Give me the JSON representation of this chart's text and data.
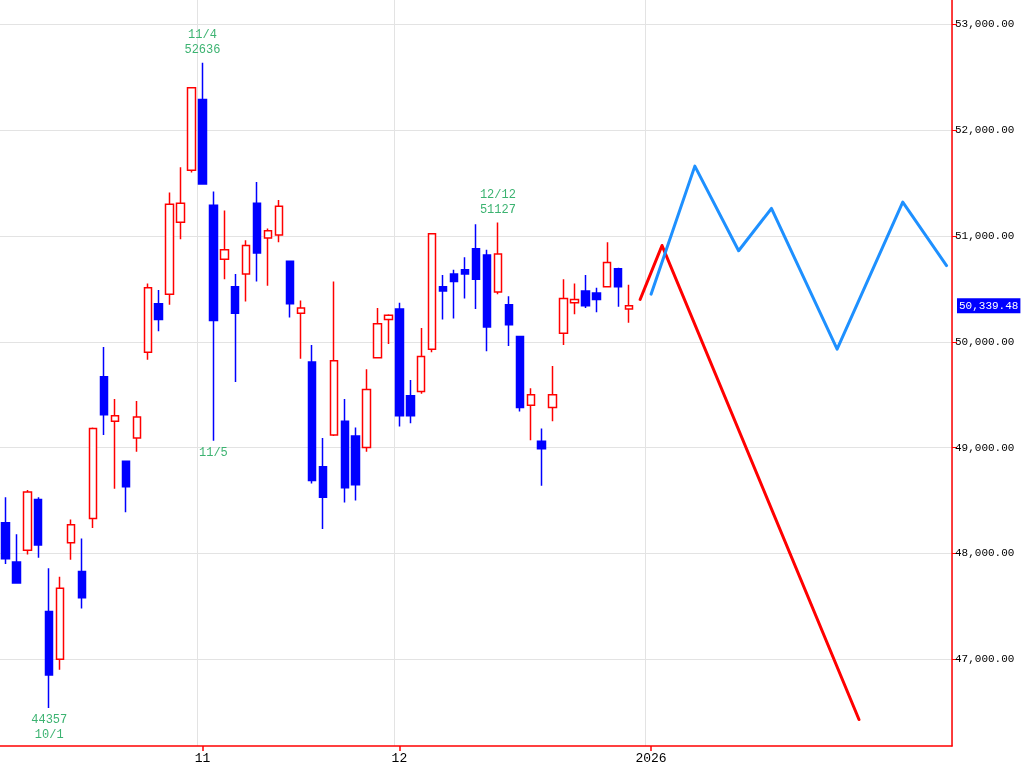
{
  "chart_data": {
    "type": "candlestick",
    "categories": [
      null,
      null,
      null,
      null,
      null,
      null,
      null,
      null,
      null,
      null,
      null,
      null,
      null,
      null,
      null,
      null,
      null,
      null,
      "11",
      null,
      null,
      null,
      null,
      null,
      null,
      null,
      null,
      null,
      null,
      null,
      null,
      null,
      null,
      null,
      null,
      null,
      "12",
      null,
      null,
      null,
      null,
      null,
      null,
      null,
      null,
      null,
      null,
      null,
      null,
      null,
      null,
      null,
      null,
      null,
      null,
      null,
      null,
      null,
      null,
      "2026",
      null,
      null,
      null,
      null,
      null,
      null,
      null,
      null,
      null,
      null,
      null,
      null,
      null,
      null,
      null,
      null,
      null,
      null,
      null,
      null,
      null,
      null,
      null,
      null,
      null,
      null,
      null
    ],
    "ohlc": [
      [
        48290,
        48530,
        47900,
        47950
      ],
      [
        47920,
        48180,
        47720,
        47720
      ],
      [
        48030,
        48600,
        47990,
        48580
      ],
      [
        48510,
        48530,
        47960,
        48080
      ],
      [
        47450,
        47860,
        46540,
        46850
      ],
      [
        47000,
        47780,
        46900,
        47670
      ],
      [
        48100,
        48320,
        47940,
        48270
      ],
      [
        47830,
        48140,
        47480,
        47580
      ],
      [
        48330,
        49190,
        48240,
        49180
      ],
      [
        49670,
        49950,
        49120,
        49310
      ],
      [
        49250,
        49460,
        48610,
        49300
      ],
      [
        48870,
        48870,
        48390,
        48630
      ],
      [
        49090,
        49440,
        48960,
        49290
      ],
      [
        49900,
        50550,
        49830,
        50510
      ],
      [
        50360,
        50490,
        50100,
        50210
      ],
      [
        50450,
        51410,
        50350,
        51300
      ],
      [
        51130,
        51650,
        50970,
        51310
      ],
      [
        51620,
        52400,
        51600,
        52400
      ],
      [
        52290,
        52636,
        51490,
        51490
      ],
      [
        51290,
        51420,
        49065,
        50200
      ],
      [
        50780,
        51240,
        50590,
        50870
      ],
      [
        50520,
        50640,
        49620,
        50270
      ],
      [
        50640,
        50960,
        50380,
        50910
      ],
      [
        51310,
        51510,
        50570,
        50840
      ],
      [
        50980,
        51070,
        50530,
        51050
      ],
      [
        51010,
        51340,
        50940,
        51280
      ],
      [
        50760,
        50760,
        50230,
        50360
      ],
      [
        50270,
        50390,
        49840,
        50320
      ],
      [
        49810,
        49970,
        48660,
        48690
      ],
      [
        48820,
        49090,
        48230,
        48530
      ],
      [
        49120,
        50570,
        49110,
        49820
      ],
      [
        49250,
        49460,
        48480,
        48620
      ],
      [
        49110,
        49190,
        48500,
        48650
      ],
      [
        49000,
        49740,
        48960,
        49550
      ],
      [
        49850,
        50320,
        49850,
        50170
      ],
      [
        50210,
        50260,
        49980,
        50250
      ],
      [
        50310,
        50370,
        49200,
        49300
      ],
      [
        49490,
        49640,
        49230,
        49300
      ],
      [
        49530,
        50130,
        49510,
        49860
      ],
      [
        49930,
        51020,
        49900,
        51020
      ],
      [
        50520,
        50630,
        50210,
        50480
      ],
      [
        50640,
        50680,
        50220,
        50570
      ],
      [
        50680,
        50800,
        50410,
        50640
      ],
      [
        50880,
        51110,
        50310,
        50590
      ],
      [
        50820,
        50870,
        49910,
        50140
      ],
      [
        50470,
        51127,
        50450,
        50830
      ],
      [
        50350,
        50430,
        49960,
        50160
      ],
      [
        50050,
        50050,
        49340,
        49380
      ],
      [
        49400,
        49560,
        49070,
        49500
      ],
      [
        49060,
        49180,
        48640,
        48990
      ],
      [
        49380,
        49770,
        49250,
        49500
      ],
      [
        50080,
        50590,
        49970,
        50410
      ],
      [
        50370,
        50550,
        50260,
        50400
      ],
      [
        50480,
        50630,
        50320,
        50340
      ],
      [
        50460,
        50510,
        50280,
        50400
      ],
      [
        50520,
        50940,
        50520,
        50750
      ],
      [
        50690,
        50700,
        50330,
        50520
      ],
      [
        50310,
        50540,
        50180,
        50339.48
      ],
      null,
      null,
      null,
      null,
      null,
      null,
      null,
      null,
      null,
      null,
      null,
      null,
      null,
      null,
      null,
      null,
      null,
      null,
      null,
      null,
      null,
      null,
      null,
      null,
      null,
      null,
      null,
      null,
      null
    ],
    "colors": [
      "#0000ff",
      "#0000ff",
      "#ff0000",
      "#0000ff",
      "#0000ff",
      "#ff0000",
      "#ff0000",
      "#0000ff",
      "#ff0000",
      "#0000ff",
      "#ff0000",
      "#0000ff",
      "#ff0000",
      "#ff0000",
      "#0000ff",
      "#ff0000",
      "#ff0000",
      "#ff0000",
      "#0000ff",
      "#0000ff",
      "#ff0000",
      "#0000ff",
      "#ff0000",
      "#0000ff",
      "#ff0000",
      "#ff0000",
      "#0000ff",
      "#ff0000",
      "#0000ff",
      "#0000ff",
      "#ff0000",
      "#0000ff",
      "#0000ff",
      "#ff0000",
      "#ff0000",
      "#ff0000",
      "#0000ff",
      "#0000ff",
      "#ff0000",
      "#ff0000",
      "#0000ff",
      "#0000ff",
      "#0000ff",
      "#0000ff",
      "#0000ff",
      "#ff0000",
      "#0000ff",
      "#0000ff",
      "#ff0000",
      "#0000ff",
      "#ff0000",
      "#ff0000",
      "#ff0000",
      "#0000ff",
      "#0000ff",
      "#ff0000",
      "#0000ff",
      "#ff0000",
      null,
      null,
      null,
      null,
      null,
      null,
      null,
      null,
      null,
      null,
      null,
      null,
      null,
      null,
      null,
      null,
      null,
      null,
      null,
      null,
      null,
      null,
      null,
      null,
      null,
      null,
      null,
      null,
      null
    ],
    "series": [
      {
        "type": "line",
        "color": "#ff0000",
        "values": [
          null,
          null,
          null,
          null,
          null,
          null,
          null,
          null,
          null,
          null,
          null,
          null,
          null,
          null,
          null,
          null,
          null,
          null,
          null,
          null,
          null,
          null,
          null,
          null,
          null,
          null,
          null,
          null,
          null,
          null,
          null,
          null,
          null,
          null,
          null,
          null,
          null,
          null,
          null,
          null,
          null,
          null,
          null,
          null,
          null,
          null,
          null,
          null,
          null,
          null,
          null,
          null,
          null,
          null,
          null,
          null,
          null,
          null,
          50400,
          null,
          50910,
          null,
          null,
          null,
          null,
          null,
          null,
          null,
          null,
          null,
          null,
          null,
          null,
          null,
          null,
          null,
          null,
          null,
          46430,
          null,
          null,
          null,
          null,
          null,
          null,
          null,
          null
        ]
      },
      {
        "type": "line",
        "color": "#1e90ff",
        "values": [
          null,
          null,
          null,
          null,
          null,
          null,
          null,
          null,
          null,
          null,
          null,
          null,
          null,
          null,
          null,
          null,
          null,
          null,
          null,
          null,
          null,
          null,
          null,
          null,
          null,
          null,
          null,
          null,
          null,
          null,
          null,
          null,
          null,
          null,
          null,
          null,
          null,
          null,
          null,
          null,
          null,
          null,
          null,
          null,
          null,
          null,
          null,
          null,
          null,
          null,
          null,
          null,
          null,
          null,
          null,
          null,
          null,
          null,
          null,
          50450,
          null,
          null,
          null,
          51660,
          null,
          null,
          null,
          50860,
          null,
          null,
          51260,
          null,
          null,
          null,
          null,
          null,
          49930,
          null,
          null,
          null,
          null,
          null,
          51320,
          null,
          null,
          null,
          50720
        ]
      }
    ],
    "ylim": [
      46180,
      53230
    ],
    "yticks": [
      {
        "value": 47000,
        "label": "47,000.00"
      },
      {
        "value": 48000,
        "label": "48,000.00"
      },
      {
        "value": 49000,
        "label": "49,000.00"
      },
      {
        "value": 50000,
        "label": "50,000.00"
      },
      {
        "value": 51000,
        "label": "51,000.00"
      },
      {
        "value": 52000,
        "label": "52,000.00"
      },
      {
        "value": 53000,
        "label": "53,000.00"
      }
    ],
    "annotations": [
      "11/4\n52636",
      "11/5",
      "12/12\n51127",
      "44357\n10/1",
      "50,339.48"
    ],
    "grid": true,
    "marker": "none"
  }
}
